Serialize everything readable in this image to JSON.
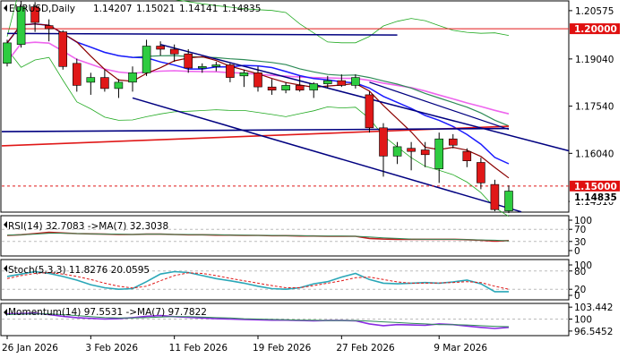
{
  "header": {
    "symbol": "EURUSD,Daily",
    "open": "1.14207",
    "high": "1.15021",
    "low": "1.14141",
    "close": "1.14835"
  },
  "colors": {
    "bull": "#2ecc40",
    "bear": "#e01818",
    "rsi": "#c02020",
    "stoch": "#2aa7b8",
    "momentum": "#8a2be2",
    "ma_dark": "#000080",
    "ma_blue": "#1a1aff",
    "ma_red": "#e01818",
    "ma_pink": "#ee66ee",
    "ma_darkred": "#8b0000",
    "ma_green": "#2e8b57",
    "envelope": "#22aa22",
    "price_label_bg": "#e01010"
  },
  "chart_data": [
    {
      "type": "candlestick",
      "pane": "price",
      "ylim": [
        1.142,
        1.208
      ],
      "y_ticks": [
        "1.20575",
        "1.19040",
        "1.17540",
        "1.16040",
        "1.14510"
      ],
      "price_labels": [
        "1.20000",
        "1.15000",
        "1.14835"
      ],
      "horizontal_levels": [
        1.2,
        1.15
      ],
      "x_labels": [
        "26 Jan 2026",
        "3 Feb 2026",
        "11 Feb 2026",
        "19 Feb 2026",
        "27 Feb 2026",
        "9 Mar 2026"
      ],
      "candles": [
        [
          1.189,
          1.1965,
          1.188,
          1.1955
        ],
        [
          1.195,
          1.209,
          1.194,
          1.207
        ],
        [
          1.207,
          1.2085,
          1.199,
          1.202
        ],
        [
          1.201,
          1.203,
          1.196,
          1.2
        ],
        [
          1.199,
          1.1995,
          1.187,
          1.188
        ],
        [
          1.189,
          1.1905,
          1.18,
          1.182
        ],
        [
          1.183,
          1.186,
          1.179,
          1.1845
        ],
        [
          1.1845,
          1.187,
          1.18,
          1.181
        ],
        [
          1.181,
          1.184,
          1.178,
          1.183
        ],
        [
          1.183,
          1.188,
          1.18,
          1.186
        ],
        [
          1.186,
          1.1965,
          1.185,
          1.1945
        ],
        [
          1.1945,
          1.196,
          1.1915,
          1.1935
        ],
        [
          1.1935,
          1.195,
          1.1895,
          1.192
        ],
        [
          1.192,
          1.1935,
          1.186,
          1.1875
        ],
        [
          1.1875,
          1.189,
          1.186,
          1.188
        ],
        [
          1.188,
          1.1895,
          1.1865,
          1.1885
        ],
        [
          1.1885,
          1.189,
          1.183,
          1.1845
        ],
        [
          1.185,
          1.187,
          1.1815,
          1.186
        ],
        [
          1.186,
          1.188,
          1.18,
          1.1815
        ],
        [
          1.1815,
          1.184,
          1.179,
          1.1805
        ],
        [
          1.1805,
          1.183,
          1.1795,
          1.182
        ],
        [
          1.182,
          1.185,
          1.18,
          1.1805
        ],
        [
          1.1805,
          1.183,
          1.178,
          1.1825
        ],
        [
          1.1825,
          1.185,
          1.181,
          1.1835
        ],
        [
          1.1835,
          1.1855,
          1.1815,
          1.182
        ],
        [
          1.182,
          1.1855,
          1.181,
          1.1845
        ],
        [
          1.179,
          1.18,
          1.167,
          1.1685
        ],
        [
          1.1685,
          1.17,
          1.153,
          1.1595
        ],
        [
          1.1595,
          1.164,
          1.157,
          1.1625
        ],
        [
          1.162,
          1.164,
          1.155,
          1.161
        ],
        [
          1.1615,
          1.164,
          1.156,
          1.16
        ],
        [
          1.1555,
          1.167,
          1.151,
          1.165
        ],
        [
          1.165,
          1.1665,
          1.162,
          1.163
        ],
        [
          1.161,
          1.162,
          1.156,
          1.158
        ],
        [
          1.1575,
          1.159,
          1.149,
          1.151
        ],
        [
          1.1505,
          1.152,
          1.142,
          1.1425
        ],
        [
          1.1421,
          1.1502,
          1.1414,
          1.1484
        ]
      ]
    },
    {
      "type": "line",
      "pane": "rsi",
      "title": "RSI(14) 32.7083  ->MA(7) 32.3038",
      "ylim": [
        0,
        100
      ],
      "y_ticks": [
        "100",
        "70",
        "30",
        "0"
      ],
      "levels": [
        70,
        30
      ],
      "series": [
        {
          "values": [
            50,
            52,
            56,
            60,
            58,
            56,
            55,
            54,
            53,
            53,
            54,
            54,
            53,
            52,
            52,
            51,
            51,
            50,
            50,
            49,
            49,
            48,
            48,
            47,
            47,
            47,
            40,
            38,
            37,
            37,
            37,
            37,
            37,
            36,
            34,
            31,
            33
          ]
        },
        {
          "values": [
            51,
            52,
            54,
            57,
            57,
            56,
            55,
            54,
            54,
            53,
            54,
            54,
            53,
            53,
            52,
            52,
            51,
            51,
            50,
            50,
            49,
            49,
            48,
            48,
            48,
            47,
            45,
            42,
            40,
            38,
            37,
            37,
            37,
            36,
            35,
            34,
            32
          ]
        }
      ]
    },
    {
      "type": "line",
      "pane": "stoch",
      "title": "Stoch(5,3,3) 11.8276 20.0595",
      "ylim": [
        0,
        100
      ],
      "y_ticks": [
        "100",
        "80",
        "20",
        "0"
      ],
      "levels": [
        80,
        20
      ],
      "series": [
        {
          "values": [
            62,
            70,
            78,
            72,
            62,
            50,
            35,
            25,
            20,
            22,
            45,
            70,
            78,
            75,
            65,
            55,
            48,
            40,
            30,
            22,
            20,
            25,
            38,
            45,
            60,
            72,
            52,
            40,
            38,
            40,
            42,
            40,
            44,
            50,
            38,
            12,
            12
          ]
        },
        {
          "values": [
            55,
            65,
            72,
            75,
            70,
            62,
            52,
            40,
            30,
            24,
            30,
            48,
            65,
            74,
            72,
            65,
            56,
            48,
            40,
            32,
            25,
            25,
            32,
            40,
            48,
            58,
            60,
            52,
            44,
            40,
            40,
            41,
            42,
            45,
            42,
            30,
            20
          ]
        }
      ]
    },
    {
      "type": "line",
      "pane": "momentum",
      "title": "Momentum(14) 97.5531  ->MA(7) 97.7822",
      "ylim": [
        96.0,
        104.0
      ],
      "y_ticks": [
        "103.442",
        "100",
        "96.5452"
      ],
      "levels": [
        100
      ],
      "series": [
        {
          "values": [
            101.5,
            101.6,
            101.7,
            101.3,
            100.8,
            100.4,
            100.2,
            100.0,
            100.1,
            100.4,
            100.8,
            101.0,
            100.7,
            100.5,
            100.3,
            100.1,
            100.0,
            99.9,
            99.8,
            99.7,
            99.7,
            99.6,
            99.5,
            99.6,
            99.6,
            99.5,
            98.6,
            98.1,
            98.4,
            98.3,
            98.2,
            98.6,
            98.4,
            98.0,
            97.6,
            97.3,
            97.6
          ]
        },
        {
          "values": [
            101.3,
            101.4,
            101.5,
            101.5,
            101.3,
            101.0,
            100.7,
            100.4,
            100.3,
            100.3,
            100.4,
            100.6,
            100.7,
            100.7,
            100.6,
            100.4,
            100.3,
            100.1,
            100.0,
            99.9,
            99.8,
            99.7,
            99.7,
            99.6,
            99.6,
            99.6,
            99.4,
            99.2,
            99.0,
            98.8,
            98.6,
            98.4,
            98.4,
            98.3,
            98.1,
            97.9,
            97.8
          ]
        }
      ]
    }
  ]
}
